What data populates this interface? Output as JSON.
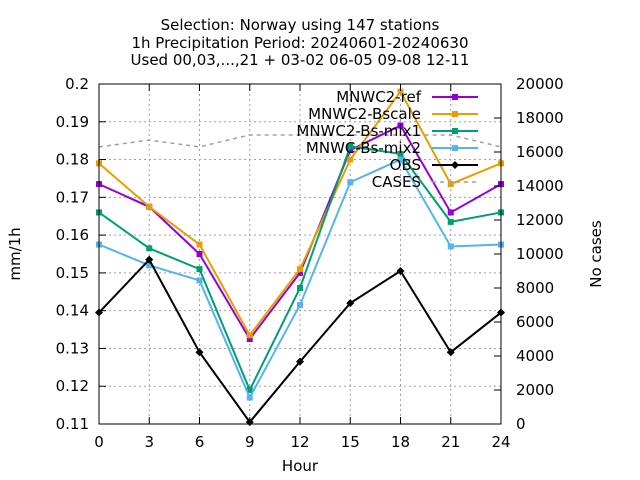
{
  "chart_data": {
    "type": "line",
    "title": [
      "Selection: Norway using   147 stations",
      "1h Precipitation   Period: 20240601-20240630",
      "Used 00,03,...,21 + 03-02 06-05 09-08 12-11"
    ],
    "xlabel": "Hour",
    "ylabel": "mm/1h",
    "y2label": "No cases",
    "x": [
      0,
      3,
      6,
      9,
      12,
      15,
      18,
      21,
      24
    ],
    "xticks": [
      "0",
      "3",
      "6",
      "9",
      "12",
      "15",
      "18",
      "21",
      "24"
    ],
    "xlim": [
      0,
      24
    ],
    "ylim": [
      0.11,
      0.2
    ],
    "yticks": [
      "0.11",
      "0.12",
      "0.13",
      "0.14",
      "0.15",
      "0.16",
      "0.17",
      "0.18",
      "0.19",
      "0.2"
    ],
    "y2lim": [
      0,
      20000
    ],
    "y2ticks": [
      "0",
      "2000",
      "4000",
      "6000",
      "8000",
      "10000",
      "12000",
      "14000",
      "16000",
      "18000",
      "20000"
    ],
    "grid": true,
    "legend_position": "top-right",
    "series": [
      {
        "name": "MNWC2-ref",
        "color": "#9400d3",
        "axis": "y1",
        "dash": "solid",
        "marker": "square",
        "values": [
          0.1735,
          0.1675,
          0.155,
          0.1325,
          0.15,
          0.1825,
          0.189,
          0.166,
          0.1735
        ]
      },
      {
        "name": "MNWC2-Bscale",
        "color": "#e69f00",
        "axis": "y1",
        "dash": "solid",
        "marker": "square",
        "values": [
          0.179,
          0.1675,
          0.1575,
          0.1335,
          0.151,
          0.18,
          0.198,
          0.1735,
          0.179
        ]
      },
      {
        "name": "MNWC2-Bs-mix1",
        "color": "#009e73",
        "axis": "y1",
        "dash": "solid",
        "marker": "square",
        "values": [
          0.166,
          0.1565,
          0.151,
          0.119,
          0.146,
          0.1835,
          0.1815,
          0.1635,
          0.166
        ]
      },
      {
        "name": "MNWC-Bs-mix2",
        "color": "#56b4e9",
        "axis": "y1",
        "dash": "solid",
        "marker": "square",
        "values": [
          0.1575,
          0.152,
          0.148,
          0.117,
          0.1415,
          0.174,
          0.18,
          0.157,
          0.1575
        ]
      },
      {
        "name": "OBS",
        "color": "#000000",
        "axis": "y1",
        "dash": "solid",
        "marker": "diamond",
        "values": [
          0.1395,
          0.1535,
          0.129,
          0.1105,
          0.1265,
          0.142,
          0.1505,
          0.129,
          0.1395
        ]
      },
      {
        "name": "CASES",
        "color": "#a0a0a0",
        "axis": "y2",
        "dash": "dashed",
        "marker": "none",
        "values": [
          16300,
          16700,
          16300,
          17000,
          17000,
          17000,
          17000,
          17000,
          16300
        ]
      }
    ]
  }
}
